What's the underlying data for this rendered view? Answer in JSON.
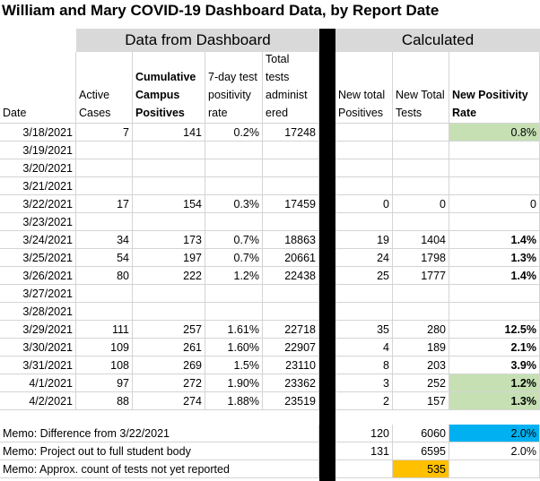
{
  "title": "William and Mary COVID-19 Dashboard Data, by Report Date",
  "bands": {
    "dashboard": "Data from Dashboard",
    "calculated": "Calculated"
  },
  "headers": {
    "date": "Date",
    "active": "Active Cases",
    "cum": "Cumulative Campus Positives",
    "pos7": "7-day test positivity rate",
    "tests": "Total tests administ ered",
    "newpos": "New total Positives",
    "newtests": "New Total Tests",
    "newrate": "New Positivity Rate"
  },
  "rows": [
    {
      "date": "3/18/2021",
      "active": "7",
      "cum": "141",
      "pos7": "0.2%",
      "tests": "17248",
      "newpos": "",
      "newtests": "",
      "newrate": "0.8%",
      "rate_style": "green"
    },
    {
      "date": "3/19/2021",
      "active": "",
      "cum": "",
      "pos7": "",
      "tests": "",
      "newpos": "",
      "newtests": "",
      "newrate": "",
      "rate_style": ""
    },
    {
      "date": "3/20/2021",
      "active": "",
      "cum": "",
      "pos7": "",
      "tests": "",
      "newpos": "",
      "newtests": "",
      "newrate": "",
      "rate_style": ""
    },
    {
      "date": "3/21/2021",
      "active": "",
      "cum": "",
      "pos7": "",
      "tests": "",
      "newpos": "",
      "newtests": "",
      "newrate": "",
      "rate_style": ""
    },
    {
      "date": "3/22/2021",
      "active": "17",
      "cum": "154",
      "pos7": "0.3%",
      "tests": "17459",
      "newpos": "0",
      "newtests": "0",
      "newrate": "0",
      "rate_style": ""
    },
    {
      "date": "3/23/2021",
      "active": "",
      "cum": "",
      "pos7": "",
      "tests": "",
      "newpos": "",
      "newtests": "",
      "newrate": "",
      "rate_style": ""
    },
    {
      "date": "3/24/2021",
      "active": "34",
      "cum": "173",
      "pos7": "0.7%",
      "tests": "18863",
      "newpos": "19",
      "newtests": "1404",
      "newrate": "1.4%",
      "rate_style": "bold"
    },
    {
      "date": "3/25/2021",
      "active": "54",
      "cum": "197",
      "pos7": "0.7%",
      "tests": "20661",
      "newpos": "24",
      "newtests": "1798",
      "newrate": "1.3%",
      "rate_style": "bold"
    },
    {
      "date": "3/26/2021",
      "active": "80",
      "cum": "222",
      "pos7": "1.2%",
      "tests": "22438",
      "newpos": "25",
      "newtests": "1777",
      "newrate": "1.4%",
      "rate_style": "bold"
    },
    {
      "date": "3/27/2021",
      "active": "",
      "cum": "",
      "pos7": "",
      "tests": "",
      "newpos": "",
      "newtests": "",
      "newrate": "",
      "rate_style": ""
    },
    {
      "date": "3/28/2021",
      "active": "",
      "cum": "",
      "pos7": "",
      "tests": "",
      "newpos": "",
      "newtests": "",
      "newrate": "",
      "rate_style": ""
    },
    {
      "date": "3/29/2021",
      "active": "111",
      "cum": "257",
      "pos7": "1.61%",
      "tests": "22718",
      "newpos": "35",
      "newtests": "280",
      "newrate": "12.5%",
      "rate_style": "bold"
    },
    {
      "date": "3/30/2021",
      "active": "109",
      "cum": "261",
      "pos7": "1.60%",
      "tests": "22907",
      "newpos": "4",
      "newtests": "189",
      "newrate": "2.1%",
      "rate_style": "bold"
    },
    {
      "date": "3/31/2021",
      "active": "108",
      "cum": "269",
      "pos7": "1.5%",
      "tests": "23110",
      "newpos": "8",
      "newtests": "203",
      "newrate": "3.9%",
      "rate_style": "bold"
    },
    {
      "date": "4/1/2021",
      "active": "97",
      "cum": "272",
      "pos7": "1.90%",
      "tests": "23362",
      "newpos": "3",
      "newtests": "252",
      "newrate": "1.2%",
      "rate_style": "bold green"
    },
    {
      "date": "4/2/2021",
      "active": "88",
      "cum": "274",
      "pos7": "1.88%",
      "tests": "23519",
      "newpos": "2",
      "newtests": "157",
      "newrate": "1.3%",
      "rate_style": "bold green"
    }
  ],
  "memos": [
    {
      "label": "Memo:  Difference from 3/22/2021",
      "newpos": "120",
      "newtests": "6060",
      "newrate": "2.0%",
      "tests_style": "",
      "rate_style": "blue"
    },
    {
      "label": "Memo:  Project out to full student body",
      "newpos": "131",
      "newtests": "6595",
      "newrate": "2.0%",
      "tests_style": "",
      "rate_style": ""
    },
    {
      "label": "Memo:  Approx. count of tests not yet reported",
      "newpos": "",
      "newtests": "535",
      "newrate": "",
      "tests_style": "orange",
      "rate_style": ""
    }
  ],
  "colors": {
    "band_gray": "#d9d9d9",
    "good_green": "#c6e0b4",
    "highlight_blue": "#00b0f0",
    "highlight_orange": "#ffc000",
    "divider_black": "#000000"
  }
}
